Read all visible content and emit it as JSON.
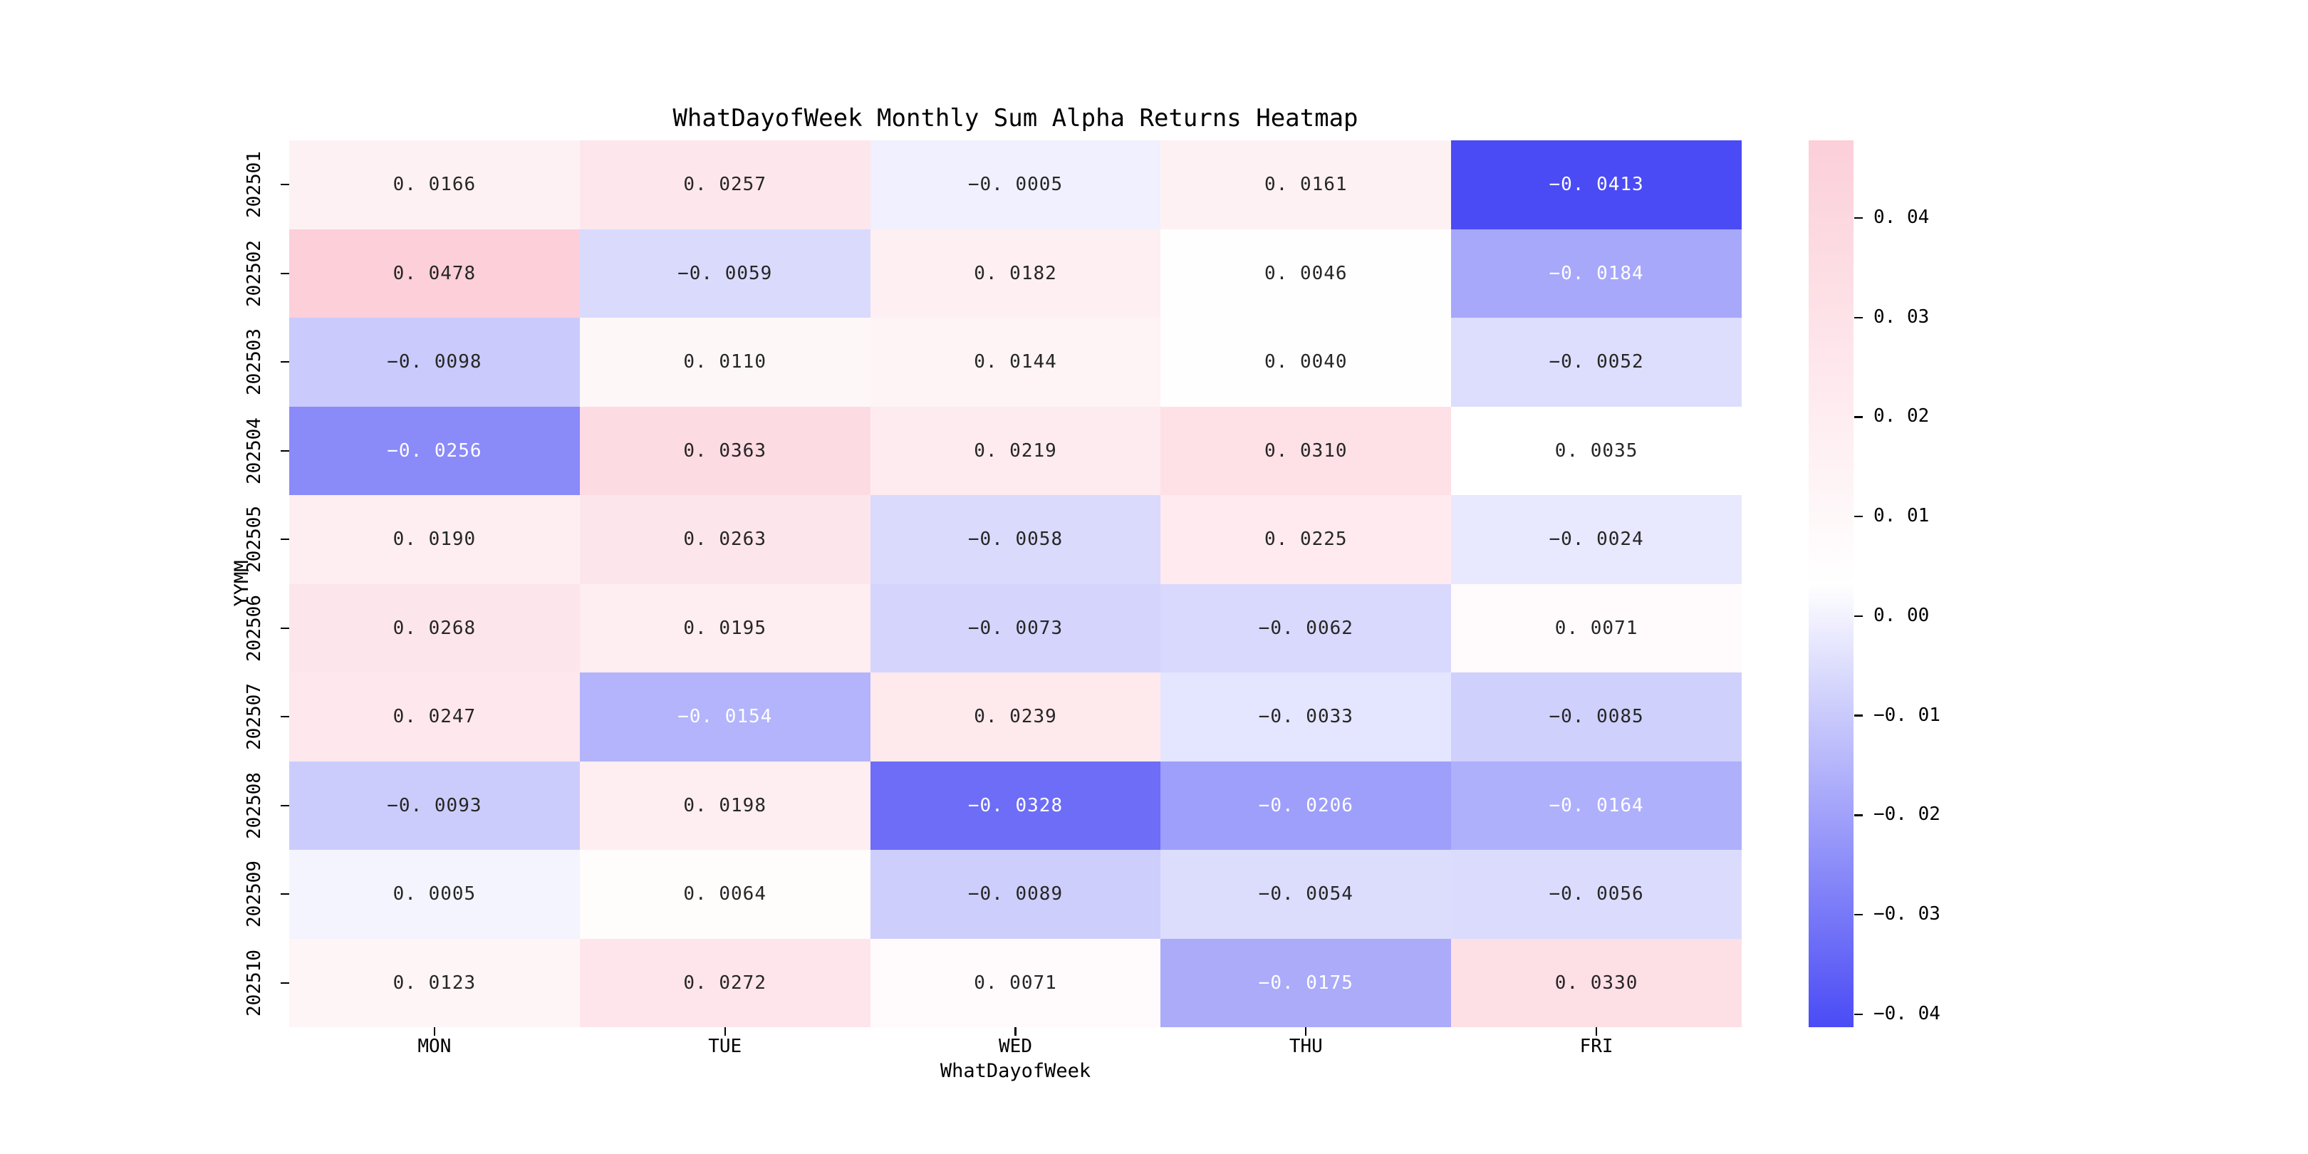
{
  "title": "WhatDayofWeek Monthly Sum Alpha Returns Heatmap",
  "chart_data": {
    "type": "heatmap",
    "title": "WhatDayofWeek Monthly Sum Alpha Returns Heatmap",
    "xlabel": "WhatDayofWeek",
    "ylabel": "YYMM",
    "x_categories": [
      "MON",
      "TUE",
      "WED",
      "THU",
      "FRI"
    ],
    "y_categories": [
      "202501",
      "202502",
      "202503",
      "202504",
      "202505",
      "202506",
      "202507",
      "202508",
      "202509",
      "202510"
    ],
    "values": [
      [
        0.0166,
        0.0257,
        -0.0005,
        0.0161,
        -0.0413
      ],
      [
        0.0478,
        -0.0059,
        0.0182,
        0.0046,
        -0.0184
      ],
      [
        -0.0098,
        0.011,
        0.0144,
        0.004,
        -0.0052
      ],
      [
        -0.0256,
        0.0363,
        0.0219,
        0.031,
        0.0035
      ],
      [
        0.019,
        0.0263,
        -0.0058,
        0.0225,
        -0.0024
      ],
      [
        0.0268,
        0.0195,
        -0.0073,
        -0.0062,
        0.0071
      ],
      [
        0.0247,
        -0.0154,
        0.0239,
        -0.0033,
        -0.0085
      ],
      [
        -0.0093,
        0.0198,
        -0.0328,
        -0.0206,
        -0.0164
      ],
      [
        0.0005,
        0.0064,
        -0.0089,
        -0.0054,
        -0.0056
      ],
      [
        0.0123,
        0.0272,
        0.0071,
        -0.0175,
        0.033
      ]
    ],
    "vmin": -0.0413,
    "vmax": 0.0478,
    "colorbar_tick_values": [
      0.04,
      0.03,
      0.02,
      0.01,
      0.0,
      -0.01,
      -0.02,
      -0.03,
      -0.04
    ],
    "cell_decimals": 4,
    "colorbar_tick_decimals": 2,
    "colors": {
      "max_color": "#fccfd9",
      "mid_color": "#ffffff",
      "min_color": "#4a4bf5",
      "annot_dark": "#262626",
      "annot_light": "#ffffff"
    },
    "legend_position": "right-colorbar",
    "grid": false
  }
}
